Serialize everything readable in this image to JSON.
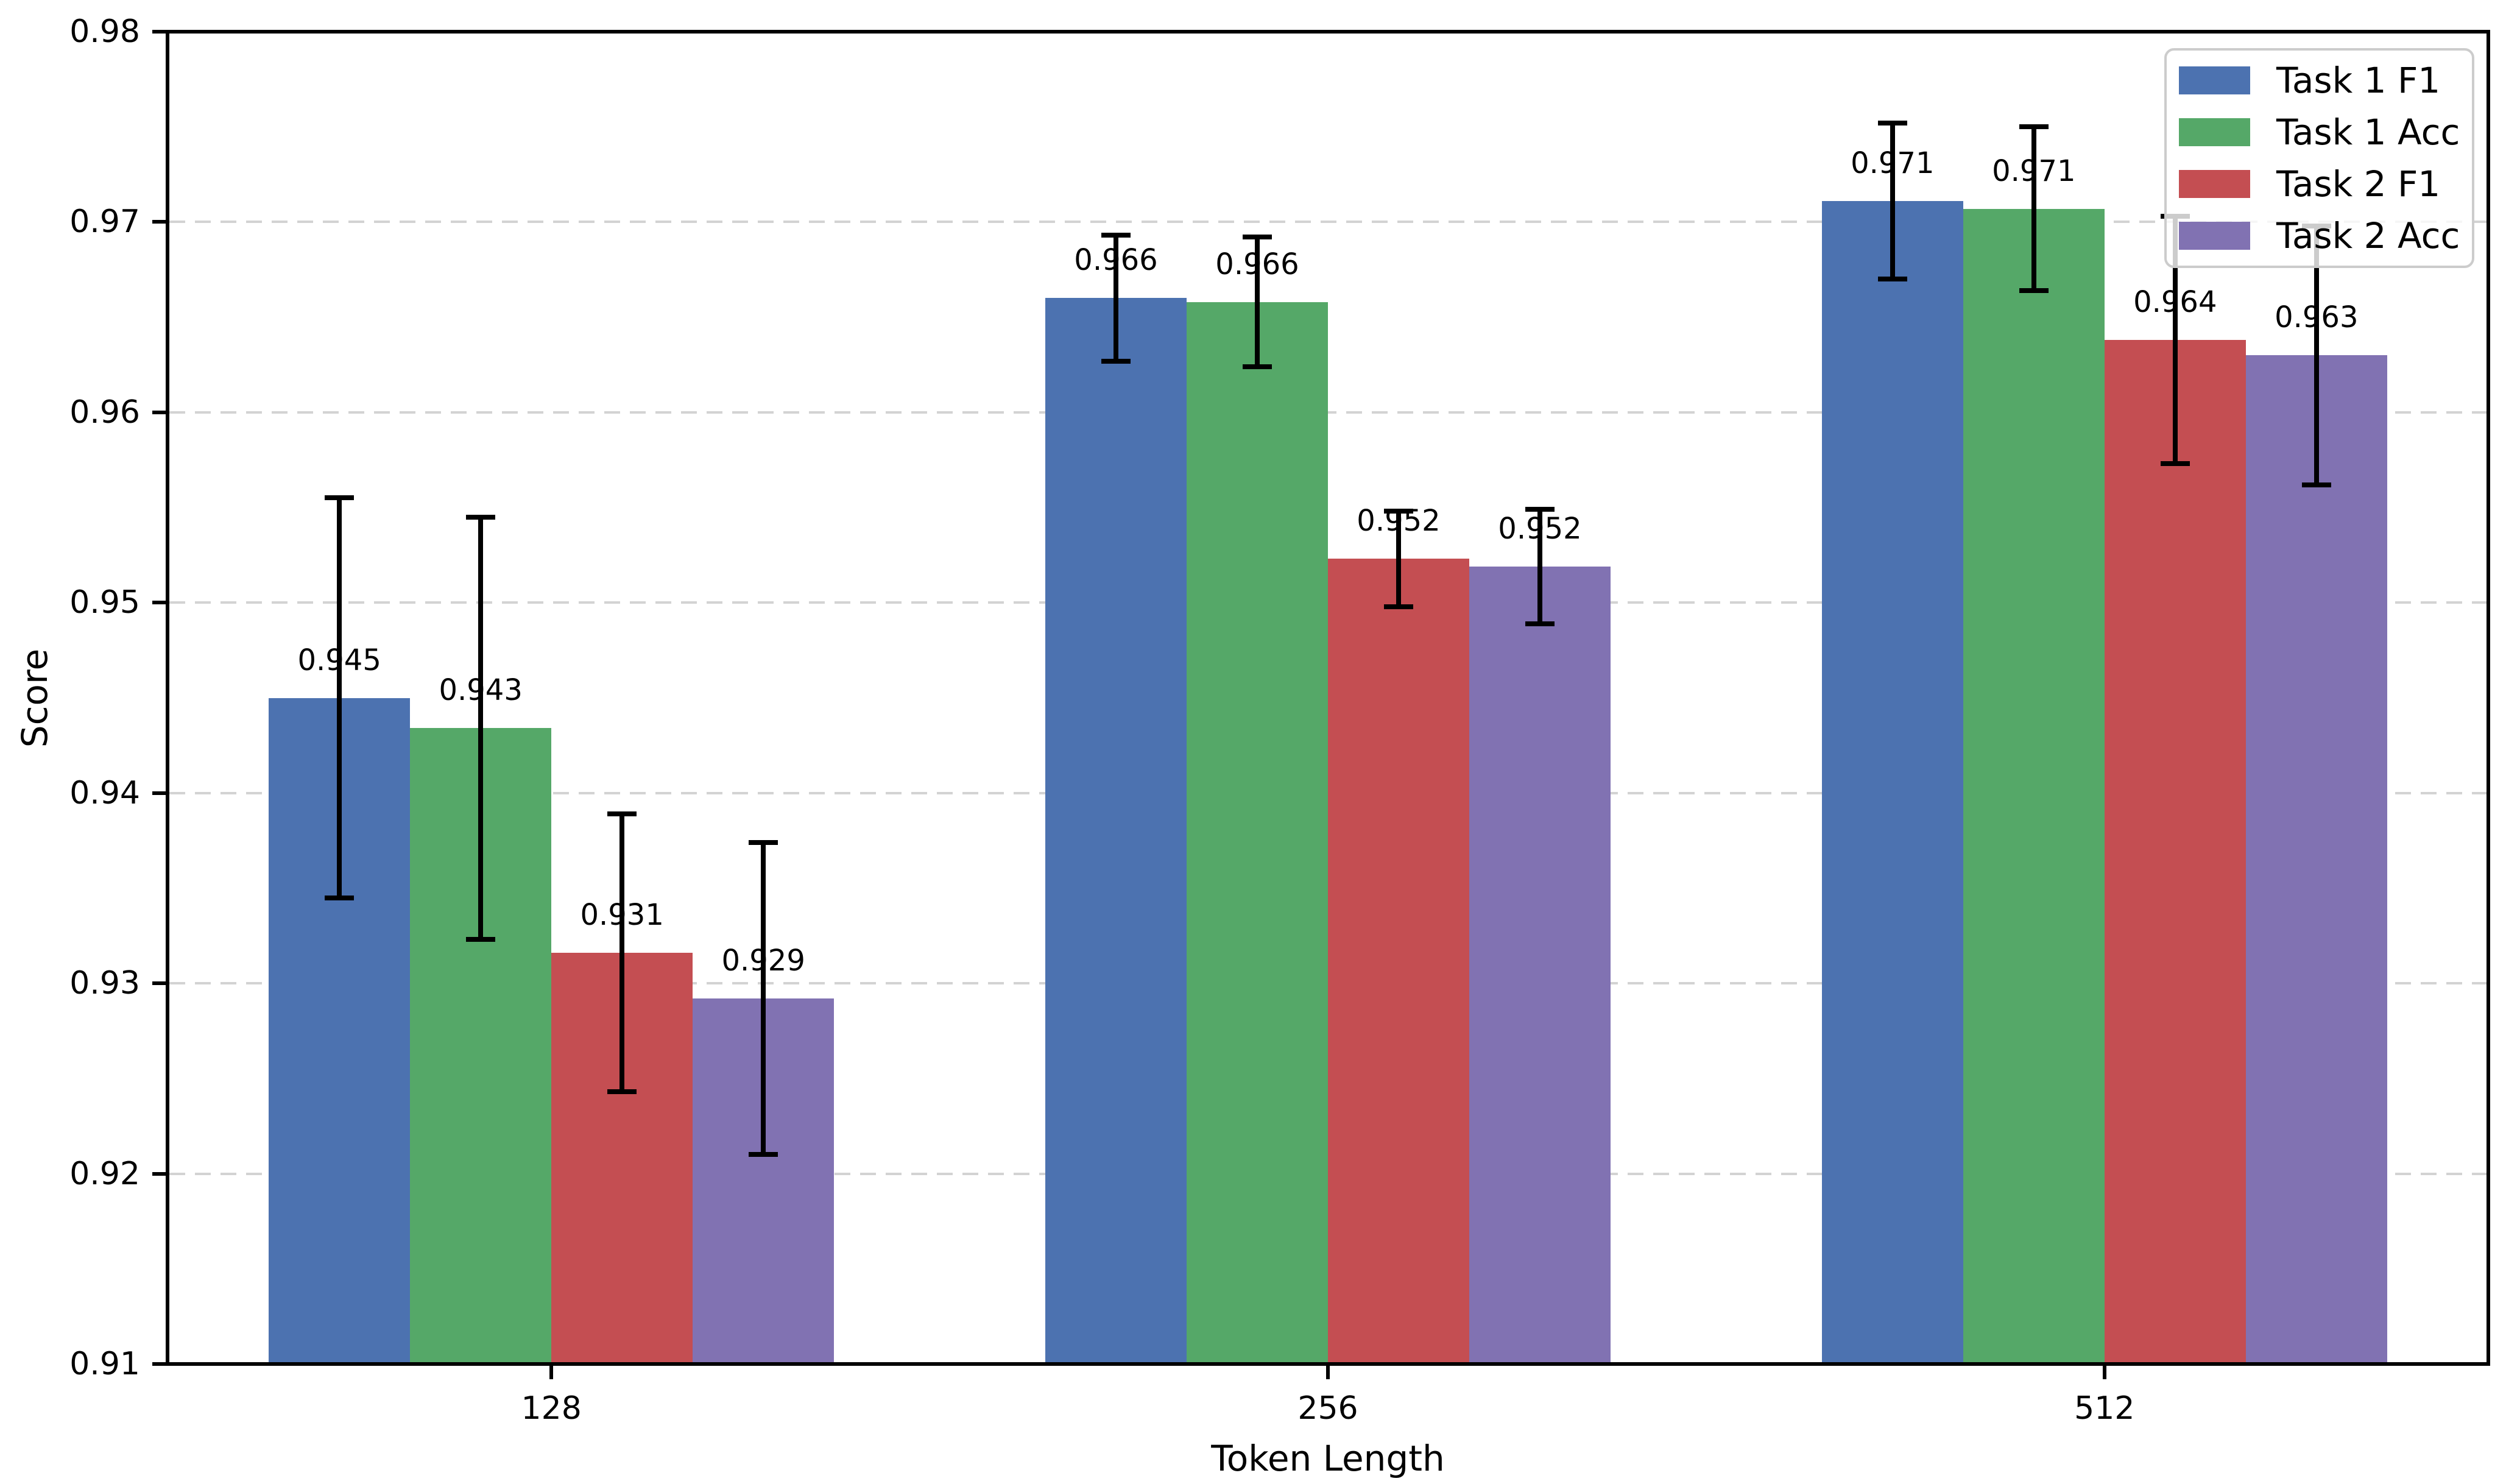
{
  "figure": {
    "background": "#ffffff"
  },
  "chart_data": {
    "type": "bar",
    "title": "",
    "xlabel": "Token Length",
    "ylabel": "Score",
    "categories": [
      "128",
      "256",
      "512"
    ],
    "ylim": [
      0.91,
      0.98
    ],
    "yticks": [
      "0.91",
      "0.92",
      "0.93",
      "0.94",
      "0.95",
      "0.96",
      "0.97",
      "0.98"
    ],
    "grid": "horizontal dashed gridlines at each y tick",
    "legend_position": "upper right",
    "error_bar_color": "#000000",
    "text_color": "#000000",
    "grid_color": "#d3d3d3",
    "series": [
      {
        "name": "Task 1 F1",
        "color": "#4C72B0",
        "values": [
          0.945,
          0.966,
          0.971
        ],
        "values_measured": [
          0.945,
          0.966,
          0.9711
        ],
        "errors": [
          0.0105,
          0.0033,
          0.0041
        ],
        "labels": [
          "0.945",
          "0.966",
          "0.971"
        ]
      },
      {
        "name": "Task 1 Acc",
        "color": "#55A868",
        "values": [
          0.943,
          0.966,
          0.971
        ],
        "values_measured": [
          0.9434,
          0.9658,
          0.9707
        ],
        "errors": [
          0.0111,
          0.0034,
          0.0043
        ],
        "labels": [
          "0.943",
          "0.966",
          "0.971"
        ]
      },
      {
        "name": "Task 2 F1",
        "color": "#C44E52",
        "values": [
          0.931,
          0.952,
          0.964
        ],
        "values_measured": [
          0.9316,
          0.9523,
          0.9638
        ],
        "errors": [
          0.0073,
          0.0025,
          0.0065
        ],
        "labels": [
          "0.931",
          "0.952",
          "0.964"
        ]
      },
      {
        "name": "Task 2 Acc",
        "color": "#8172B2",
        "values": [
          0.929,
          0.952,
          0.963
        ],
        "values_measured": [
          0.9292,
          0.9519,
          0.963
        ],
        "errors": [
          0.0082,
          0.003,
          0.0068
        ],
        "labels": [
          "0.929",
          "0.952",
          "0.963"
        ]
      }
    ]
  }
}
